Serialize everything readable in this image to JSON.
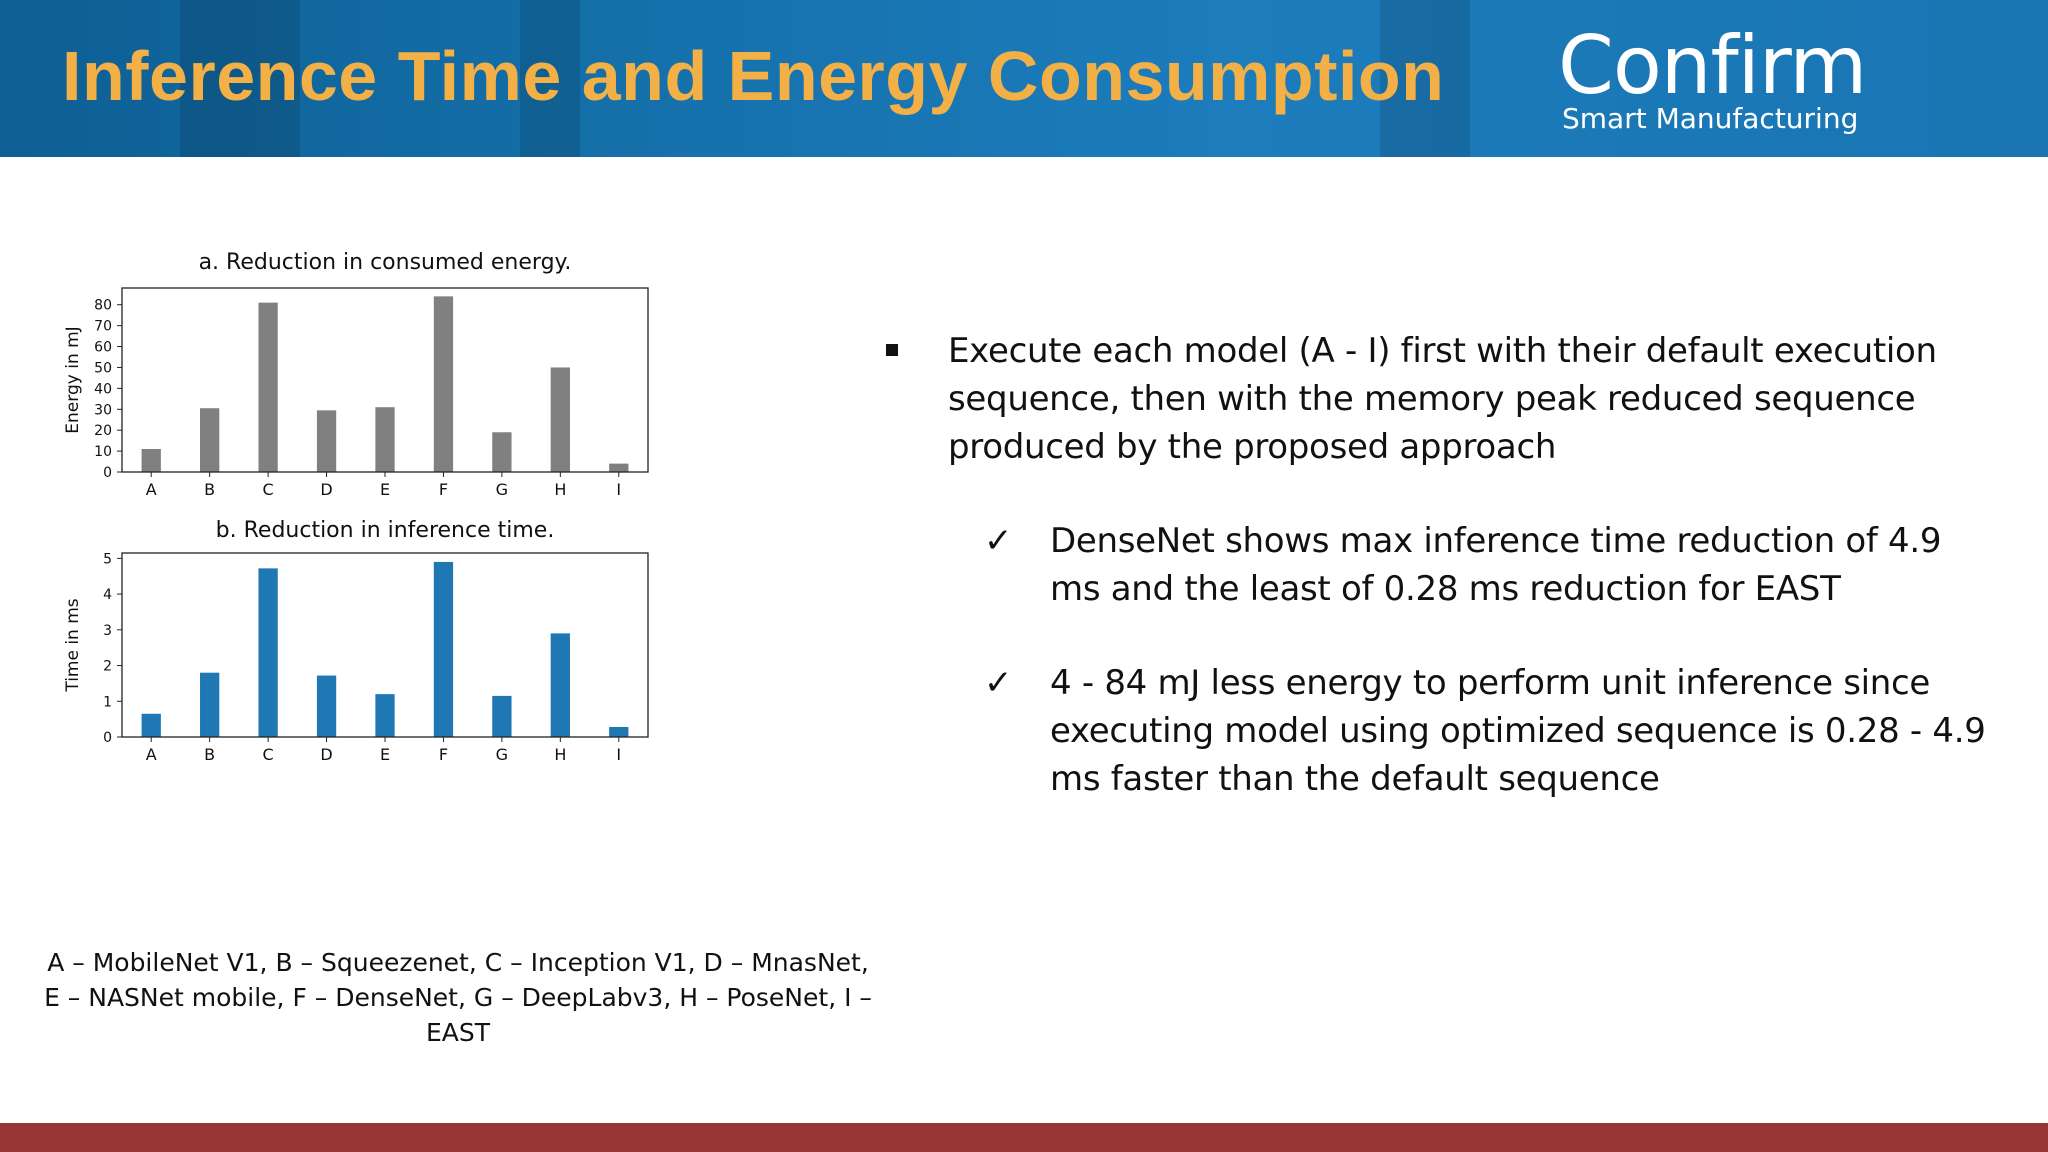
{
  "slide": {
    "title": "Inference Time and Energy Consumption",
    "logo": {
      "main": "Confirm",
      "sub": "Smart Manufacturing"
    },
    "colors": {
      "header": "#1a73b2",
      "title": "#f2b047",
      "footer": "#973535",
      "gray_bar": "#808080",
      "blue_bar": "#1f77b4"
    }
  },
  "chart_data": [
    {
      "type": "bar",
      "title": "a. Reduction in consumed energy.",
      "xlabel": "",
      "ylabel": "Energy in mJ",
      "categories": [
        "A",
        "B",
        "C",
        "D",
        "E",
        "F",
        "G",
        "H",
        "I"
      ],
      "values": [
        11,
        30.5,
        81,
        29.5,
        31,
        84,
        19,
        50,
        4
      ],
      "ylim": [
        0,
        88
      ],
      "yticks": [
        0,
        10,
        20,
        30,
        40,
        50,
        60,
        70,
        80
      ],
      "color": "#808080"
    },
    {
      "type": "bar",
      "title": "b. Reduction in inference time.",
      "xlabel": "",
      "ylabel": "Time in ms",
      "categories": [
        "A",
        "B",
        "C",
        "D",
        "E",
        "F",
        "G",
        "H",
        "I"
      ],
      "values": [
        0.65,
        1.8,
        4.72,
        1.72,
        1.2,
        4.9,
        1.15,
        2.9,
        0.28
      ],
      "ylim": [
        0,
        5.15
      ],
      "yticks": [
        0,
        1,
        2,
        3,
        4,
        5
      ],
      "color": "#1f77b4"
    }
  ],
  "caption": {
    "line1": "A – MobileNet V1, B – Squeezenet, C – Inception V1, D – MnasNet,",
    "line2": "E – NASNet mobile, F – DenseNet, G – DeepLabv3, H – PoseNet, I – EAST"
  },
  "bullets": {
    "main": "Execute each model (A - I) first with their default execution sequence, then with the memory peak reduced sequence produced by the proposed approach",
    "check_glyph": "✓",
    "sub": [
      "DenseNet shows max inference time reduction of 4.9 ms and the least of 0.28 ms reduction for EAST",
      "4 - 84 mJ less energy to perform unit inference since executing model using optimized sequence is 0.28 - 4.9 ms faster than the default sequence"
    ]
  }
}
